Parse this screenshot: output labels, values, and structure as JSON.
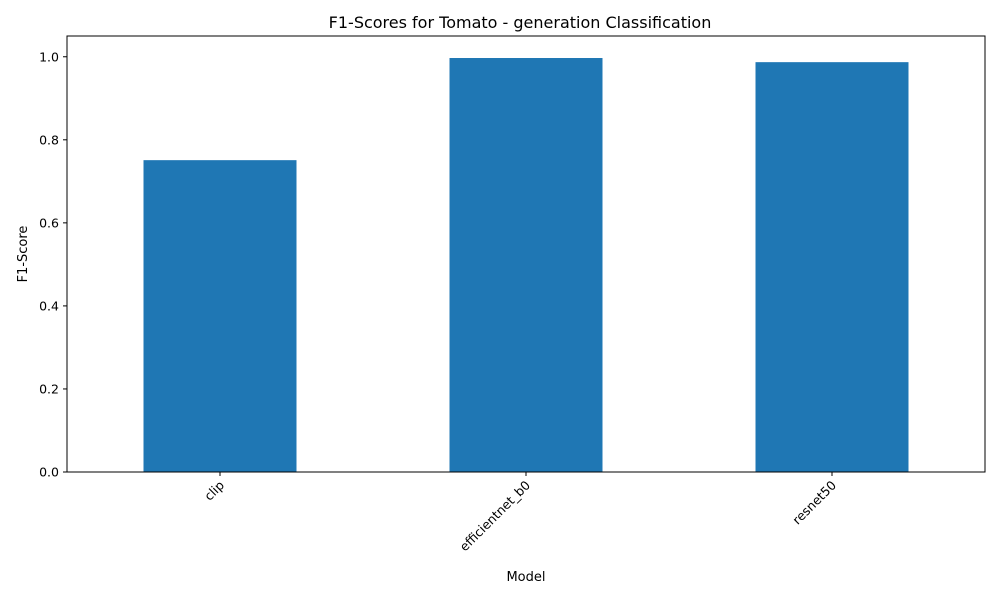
{
  "chart_data": {
    "type": "bar",
    "title": "F1-Scores for Tomato - generation Classification",
    "xlabel": "Model",
    "ylabel": "F1-Score",
    "categories": [
      "clip",
      "efficientnet_b0",
      "resnet50"
    ],
    "values": [
      0.751,
      0.997,
      0.987
    ],
    "ylim": [
      0,
      1.05
    ],
    "yticks": [
      0.0,
      0.2,
      0.4,
      0.6,
      0.8,
      1.0
    ],
    "ytick_labels": [
      "0.0",
      "0.2",
      "0.4",
      "0.6",
      "0.8",
      "1.0"
    ],
    "xtick_rotation_deg": 45,
    "grid": false,
    "legend": false,
    "bar_color": "#1f77b4"
  }
}
